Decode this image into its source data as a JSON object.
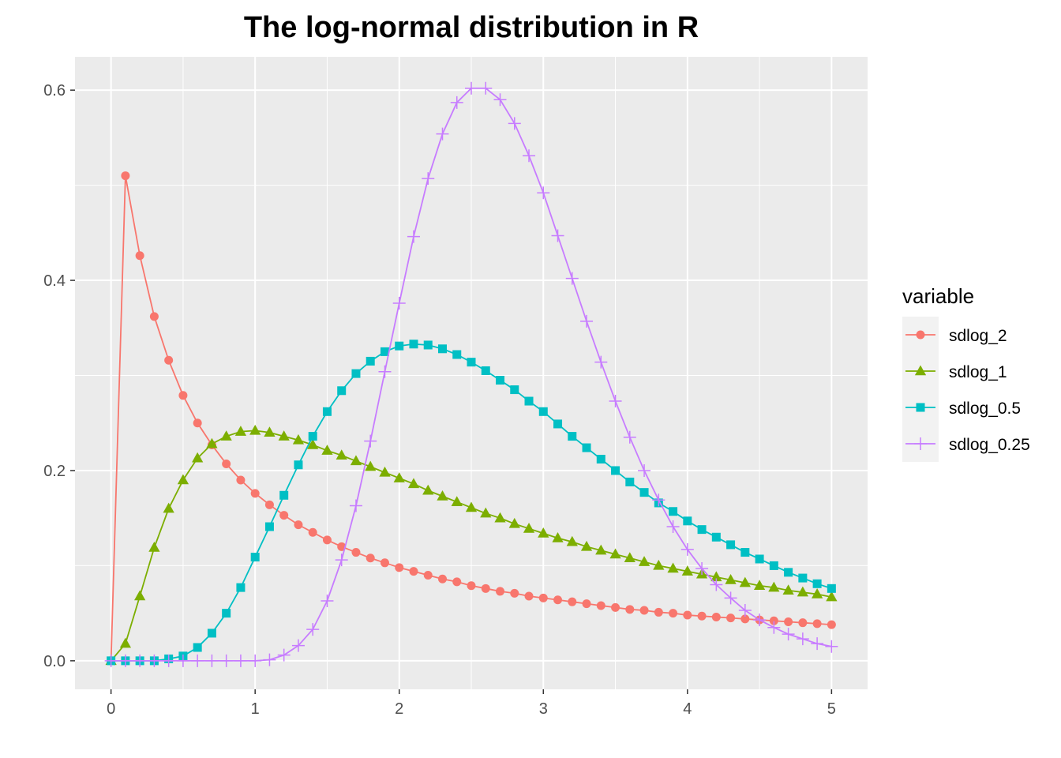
{
  "chart_data": {
    "type": "line",
    "title": "The log-normal distribution in R",
    "xlabel": "",
    "ylabel": "",
    "xlim": [
      -0.25,
      5.25
    ],
    "ylim": [
      -0.03,
      0.635
    ],
    "x_ticks": [
      0,
      1,
      2,
      3,
      4,
      5
    ],
    "y_ticks": [
      0.0,
      0.2,
      0.4,
      0.6
    ],
    "x_tick_labels": [
      "0",
      "1",
      "2",
      "3",
      "4",
      "5"
    ],
    "y_tick_labels": [
      "0.0",
      "0.2",
      "0.4",
      "0.6"
    ],
    "grid": true,
    "legend": {
      "title": "variable",
      "position": "right"
    },
    "x": [
      0,
      0.1,
      0.2,
      0.3,
      0.4,
      0.5,
      0.6,
      0.7,
      0.8,
      0.9,
      1.0,
      1.1,
      1.2,
      1.3,
      1.4,
      1.5,
      1.6,
      1.7,
      1.8,
      1.9,
      2.0,
      2.1,
      2.2,
      2.3,
      2.4,
      2.5,
      2.6,
      2.7,
      2.8,
      2.9,
      3.0,
      3.1,
      3.2,
      3.3,
      3.4,
      3.5,
      3.6,
      3.7,
      3.8,
      3.9,
      4.0,
      4.1,
      4.2,
      4.3,
      4.4,
      4.5,
      4.6,
      4.7,
      4.8,
      4.9,
      5.0
    ],
    "series": [
      {
        "name": "sdlog_2",
        "color": "#F8766D",
        "shape": "circle",
        "values": [
          0.0,
          0.51,
          0.426,
          0.362,
          0.316,
          0.279,
          0.25,
          0.227,
          0.207,
          0.19,
          0.176,
          0.164,
          0.153,
          0.143,
          0.135,
          0.127,
          0.12,
          0.114,
          0.108,
          0.103,
          0.098,
          0.094,
          0.09,
          0.086,
          0.083,
          0.079,
          0.076,
          0.073,
          0.071,
          0.068,
          0.066,
          0.064,
          0.062,
          0.06,
          0.058,
          0.056,
          0.054,
          0.053,
          0.051,
          0.05,
          0.048,
          0.047,
          0.046,
          0.045,
          0.044,
          0.043,
          0.042,
          0.041,
          0.04,
          0.039,
          0.038
        ]
      },
      {
        "name": "sdlog_1",
        "color": "#7CAE00",
        "shape": "triangle",
        "values": [
          0.0,
          0.018,
          0.068,
          0.119,
          0.16,
          0.19,
          0.213,
          0.228,
          0.236,
          0.241,
          0.242,
          0.24,
          0.236,
          0.232,
          0.227,
          0.221,
          0.216,
          0.21,
          0.204,
          0.198,
          0.192,
          0.186,
          0.179,
          0.173,
          0.167,
          0.161,
          0.155,
          0.15,
          0.144,
          0.139,
          0.134,
          0.129,
          0.125,
          0.12,
          0.116,
          0.112,
          0.108,
          0.104,
          0.1,
          0.097,
          0.094,
          0.091,
          0.088,
          0.085,
          0.082,
          0.079,
          0.077,
          0.074,
          0.072,
          0.07,
          0.067
        ]
      },
      {
        "name": "sdlog_0.5",
        "color": "#00BFC4",
        "shape": "square",
        "values": [
          0.0,
          0.0,
          0.0,
          0.0,
          0.002,
          0.005,
          0.014,
          0.029,
          0.05,
          0.077,
          0.109,
          0.141,
          0.174,
          0.206,
          0.236,
          0.262,
          0.284,
          0.302,
          0.315,
          0.325,
          0.331,
          0.333,
          0.332,
          0.328,
          0.322,
          0.314,
          0.305,
          0.295,
          0.285,
          0.273,
          0.262,
          0.249,
          0.236,
          0.224,
          0.212,
          0.2,
          0.188,
          0.177,
          0.166,
          0.157,
          0.147,
          0.138,
          0.13,
          0.122,
          0.114,
          0.107,
          0.1,
          0.093,
          0.087,
          0.081,
          0.076
        ]
      },
      {
        "name": "sdlog_0.25",
        "color": "#C77CFF",
        "shape": "plus",
        "values": [
          0.0,
          0.0,
          0.0,
          0.0,
          0.0,
          0.0,
          0.0,
          0.0,
          0.0,
          0.0,
          0.0,
          0.001,
          0.006,
          0.016,
          0.033,
          0.063,
          0.106,
          0.163,
          0.231,
          0.304,
          0.376,
          0.446,
          0.507,
          0.554,
          0.587,
          0.602,
          0.602,
          0.59,
          0.565,
          0.531,
          0.492,
          0.447,
          0.402,
          0.357,
          0.314,
          0.273,
          0.235,
          0.2,
          0.169,
          0.141,
          0.117,
          0.097,
          0.08,
          0.066,
          0.053,
          0.043,
          0.035,
          0.028,
          0.023,
          0.018,
          0.015
        ]
      }
    ]
  }
}
